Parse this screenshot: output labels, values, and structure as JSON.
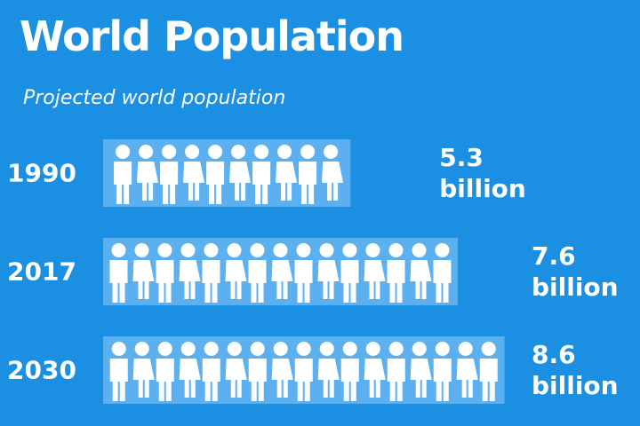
{
  "chart_data": {
    "type": "bar",
    "title": "World Population",
    "subtitle": "Projected world population",
    "categories": [
      "1990",
      "2017",
      "2030"
    ],
    "values": [
      5.3,
      7.6,
      8.6
    ],
    "value_labels": [
      "5.3 billion",
      "7.6 billion",
      "8.6 billion"
    ],
    "color": "#5cb0f0",
    "icon_color": "#ffffff"
  }
}
